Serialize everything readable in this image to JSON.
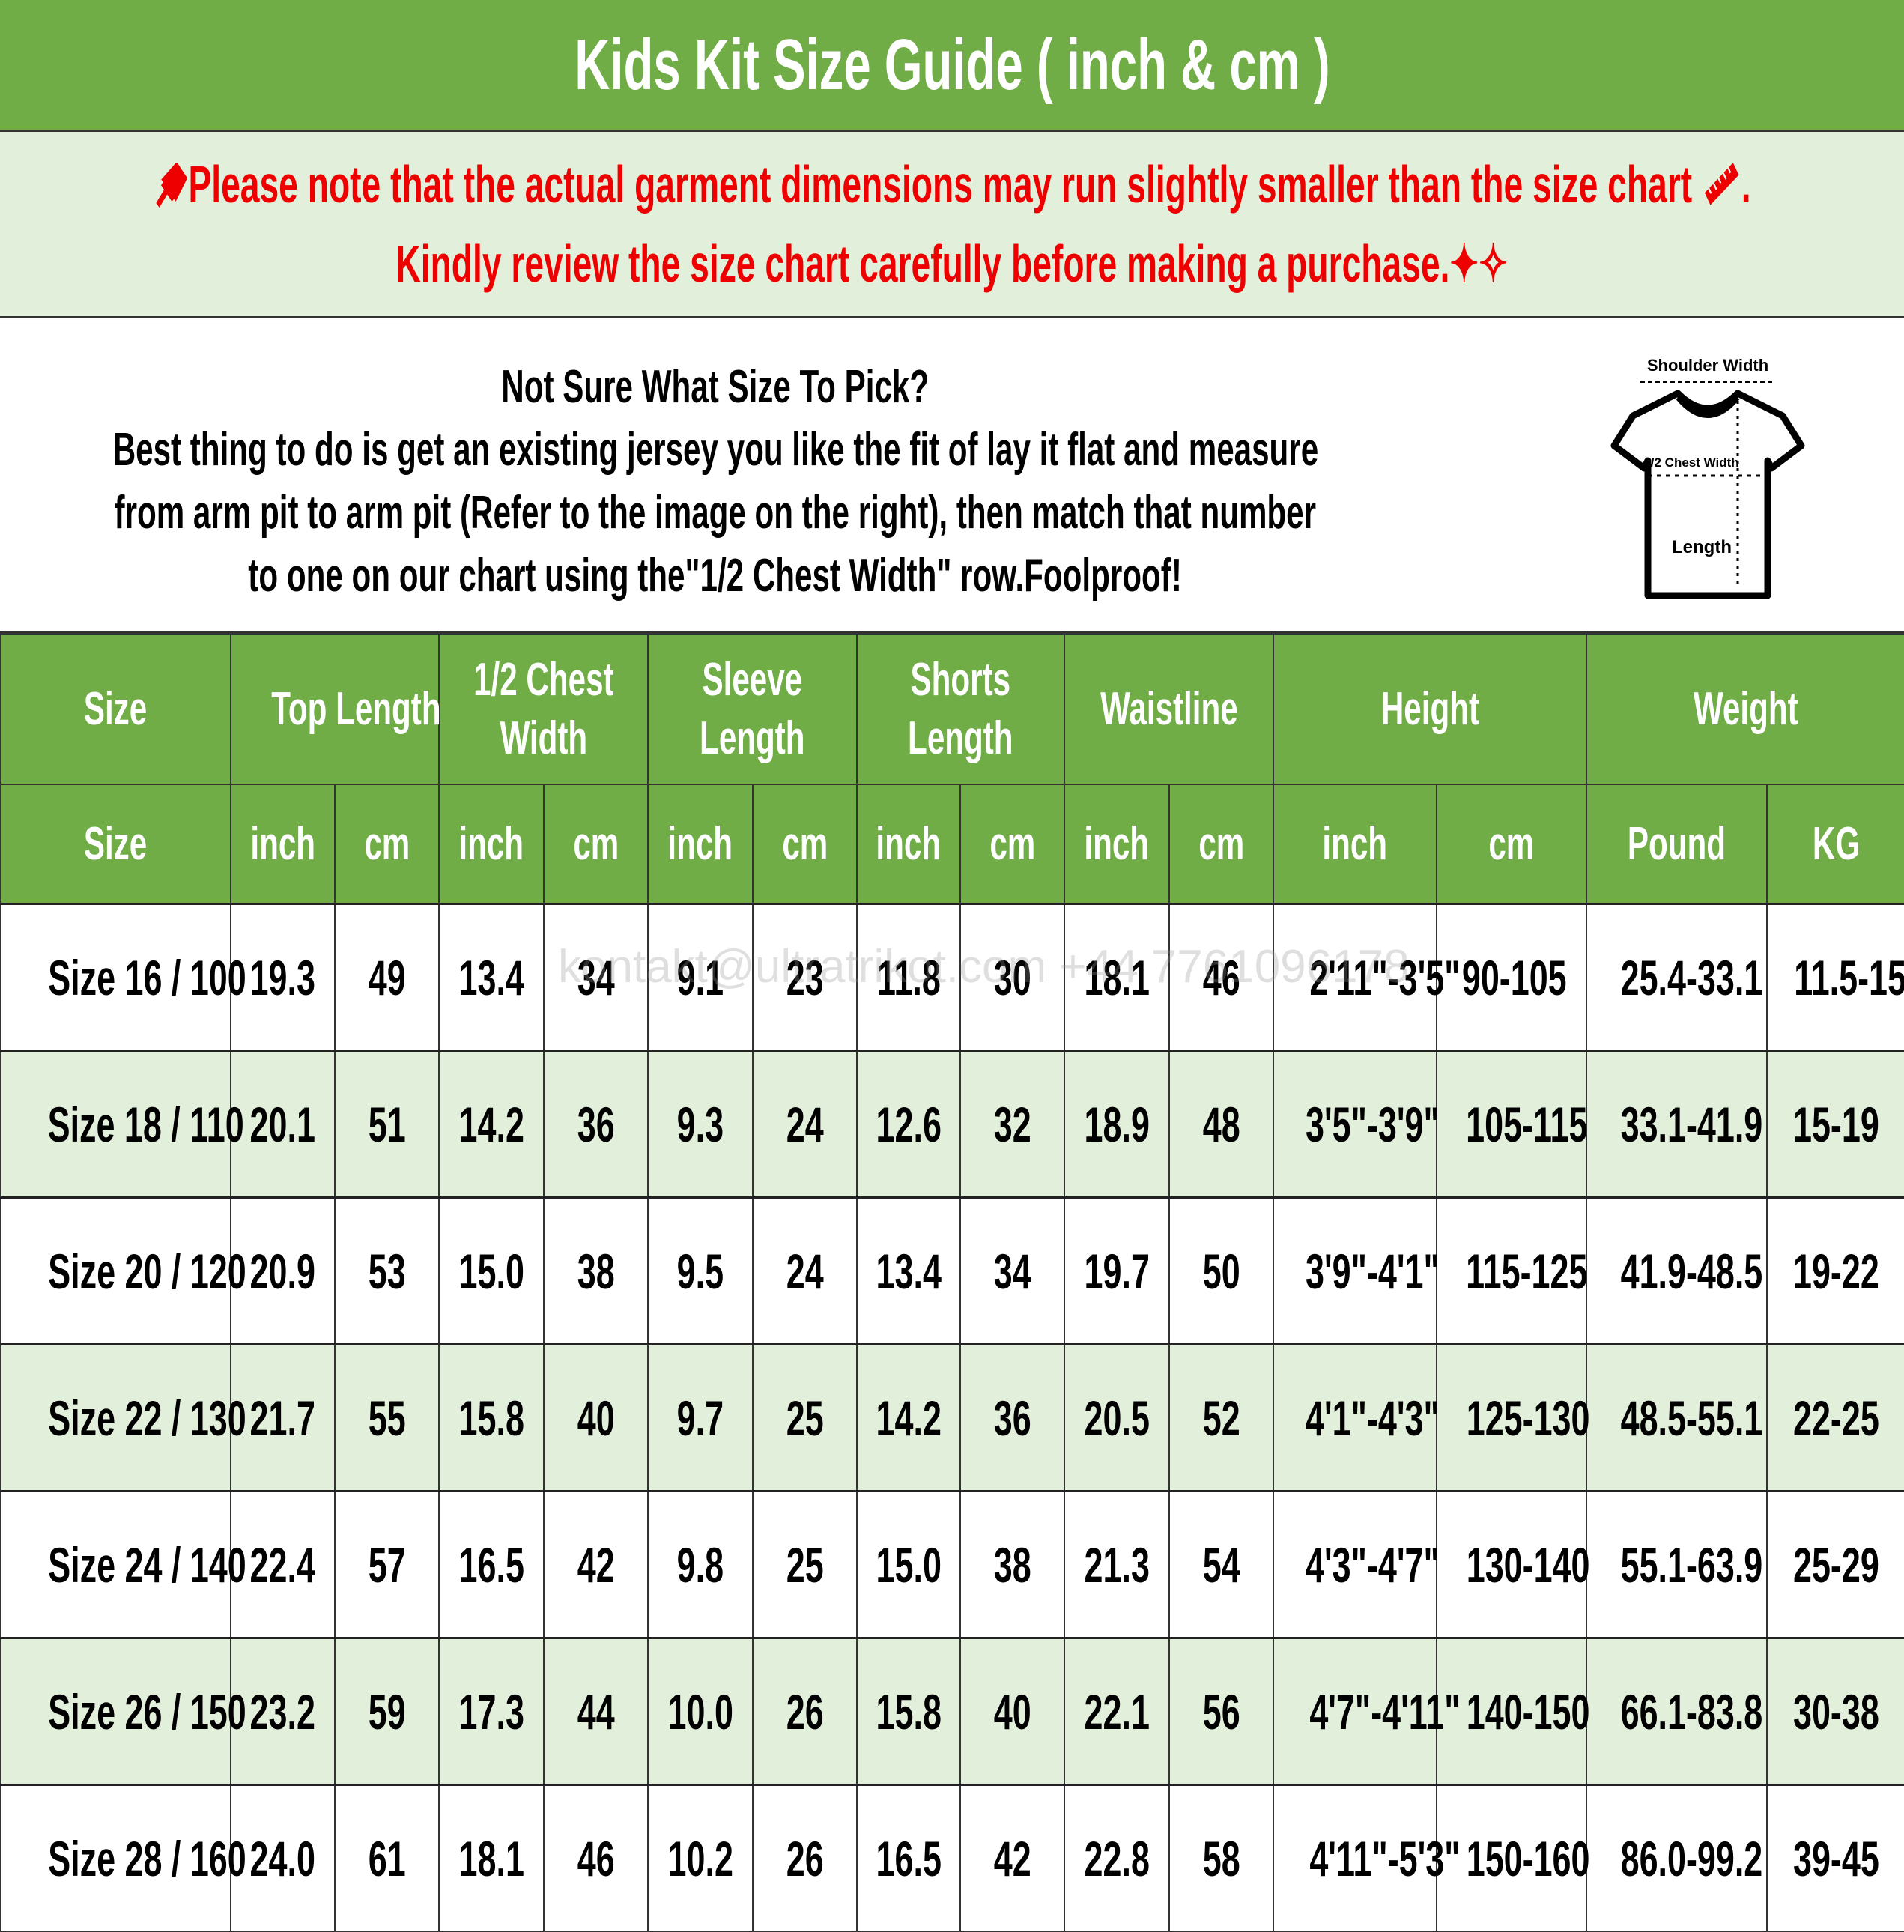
{
  "title": "Kids Kit Size Guide ( inch & cm )",
  "note": {
    "line1": "Please note that the actual garment dimensions may run slightly smaller than the size chart",
    "line1_end": ".",
    "line2": "Kindly review the size chart carefully before making a purchase.",
    "icons": [
      "pushpin-icon",
      "ruler-icon",
      "sparkles-icon"
    ],
    "color": "#ee0000"
  },
  "info": {
    "heading": "Not Sure What Size To Pick?",
    "lines": [
      "Best thing to do is get an existing jersey you like the fit of lay it flat and measure",
      "from arm pit to arm pit (Refer to the image on the right), then match that number",
      "to one on our chart using the\"1/2 Chest Width\" row.Foolproof!"
    ],
    "diagram": {
      "shoulder_label": "Shoulder Width",
      "chest_label": "1/2 Chest Width",
      "length_label": "Length"
    }
  },
  "table": {
    "header_groups": [
      {
        "label": "Size",
        "span": 1
      },
      {
        "label": "Top Length",
        "span": 2
      },
      {
        "label": "1/2 Chest\nWidth",
        "span": 2
      },
      {
        "label": "Sleeve\nLength",
        "span": 2
      },
      {
        "label": "Shorts\nLength",
        "span": 2
      },
      {
        "label": "Waistline",
        "span": 2
      },
      {
        "label": "Height",
        "span": 2
      },
      {
        "label": "Weight",
        "span": 2
      }
    ],
    "units": [
      "Size",
      "inch",
      "cm",
      "inch",
      "cm",
      "inch",
      "cm",
      "inch",
      "cm",
      "inch",
      "cm",
      "inch",
      "cm",
      "Pound",
      "KG"
    ],
    "rows": [
      [
        "Size 16 / 100",
        "19.3",
        "49",
        "13.4",
        "34",
        "9.1",
        "23",
        "11.8",
        "30",
        "18.1",
        "46",
        "2'11\"-3'5\"",
        "90-105",
        "25.4-33.1",
        "11.5-15"
      ],
      [
        "Size 18 / 110",
        "20.1",
        "51",
        "14.2",
        "36",
        "9.3",
        "24",
        "12.6",
        "32",
        "18.9",
        "48",
        "3'5\"-3'9\"",
        "105-115",
        "33.1-41.9",
        "15-19"
      ],
      [
        "Size 20 / 120",
        "20.9",
        "53",
        "15.0",
        "38",
        "9.5",
        "24",
        "13.4",
        "34",
        "19.7",
        "50",
        "3'9\"-4'1\"",
        "115-125",
        "41.9-48.5",
        "19-22"
      ],
      [
        "Size 22 / 130",
        "21.7",
        "55",
        "15.8",
        "40",
        "9.7",
        "25",
        "14.2",
        "36",
        "20.5",
        "52",
        "4'1\"-4'3\"",
        "125-130",
        "48.5-55.1",
        "22-25"
      ],
      [
        "Size 24 / 140",
        "22.4",
        "57",
        "16.5",
        "42",
        "9.8",
        "25",
        "15.0",
        "38",
        "21.3",
        "54",
        "4'3\"-4'7\"",
        "130-140",
        "55.1-63.9",
        "25-29"
      ],
      [
        "Size 26 / 150",
        "23.2",
        "59",
        "17.3",
        "44",
        "10.0",
        "26",
        "15.8",
        "40",
        "22.1",
        "56",
        "4'7\"-4'11\"",
        "140-150",
        "66.1-83.8",
        "30-38"
      ],
      [
        "Size 28 / 160",
        "24.0",
        "61",
        "18.1",
        "46",
        "10.2",
        "26",
        "16.5",
        "42",
        "22.8",
        "58",
        "4'11\"-5'3\"",
        "150-160",
        "86.0-99.2",
        "39-45"
      ]
    ]
  },
  "watermark": "kontakt@ultratrikot.com  +44 7761096178",
  "colors": {
    "header_green": "#70AD47",
    "light_green": "#E2EFDA",
    "note_red": "#ee0000"
  }
}
